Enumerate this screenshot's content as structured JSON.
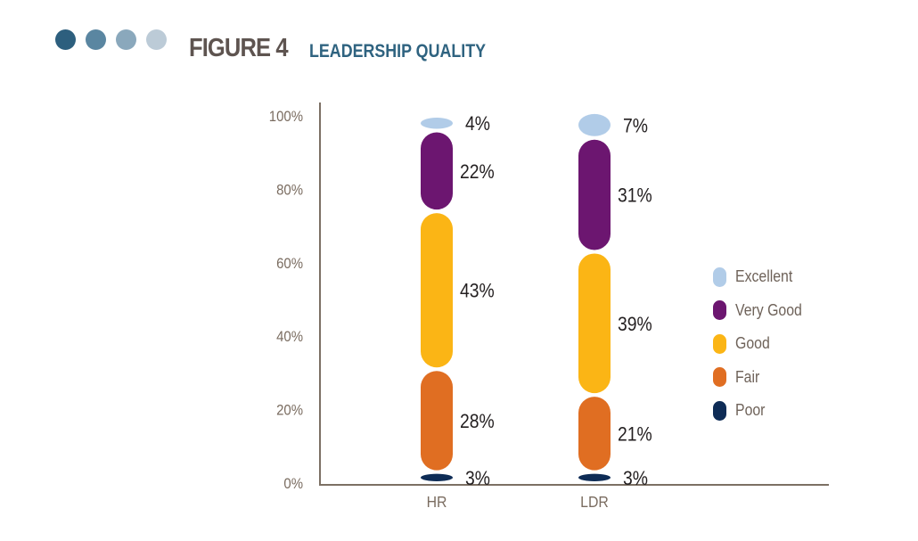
{
  "header": {
    "dot_colors": [
      "#2d5f7e",
      "#5a86a1",
      "#8aa8bc",
      "#bccbd7"
    ],
    "figure_label": "FIGURE 4",
    "figure_title": "LEADERSHIP QUALITY"
  },
  "chart_data": {
    "type": "bar",
    "stacked": true,
    "title": "LEADERSHIP QUALITY",
    "xlabel": "",
    "ylabel": "",
    "ylim": [
      0,
      100
    ],
    "yticks": [
      "0%",
      "20%",
      "40%",
      "60%",
      "80%",
      "100%"
    ],
    "ytick_values": [
      0,
      20,
      40,
      60,
      80,
      100
    ],
    "grid": false,
    "legend_position": "right",
    "categories": [
      "HR",
      "LDR"
    ],
    "series": [
      {
        "name": "Poor",
        "color": "#0e2c56",
        "values": [
          3,
          3
        ],
        "labels": [
          "3%",
          "3%"
        ]
      },
      {
        "name": "Fair",
        "color": "#e06e22",
        "values": [
          28,
          21
        ],
        "labels": [
          "28%",
          "21%"
        ]
      },
      {
        "name": "Good",
        "color": "#fbb515",
        "values": [
          43,
          39
        ],
        "labels": [
          "43%",
          "39%"
        ]
      },
      {
        "name": "Very Good",
        "color": "#6c1670",
        "values": [
          22,
          31
        ],
        "labels": [
          "22%",
          "31%"
        ]
      },
      {
        "name": "Excellent",
        "color": "#b1cce8",
        "values": [
          4,
          7
        ],
        "labels": [
          "4%",
          "7%"
        ]
      }
    ],
    "legend": [
      "Excellent",
      "Very Good",
      "Good",
      "Fair",
      "Poor"
    ]
  }
}
